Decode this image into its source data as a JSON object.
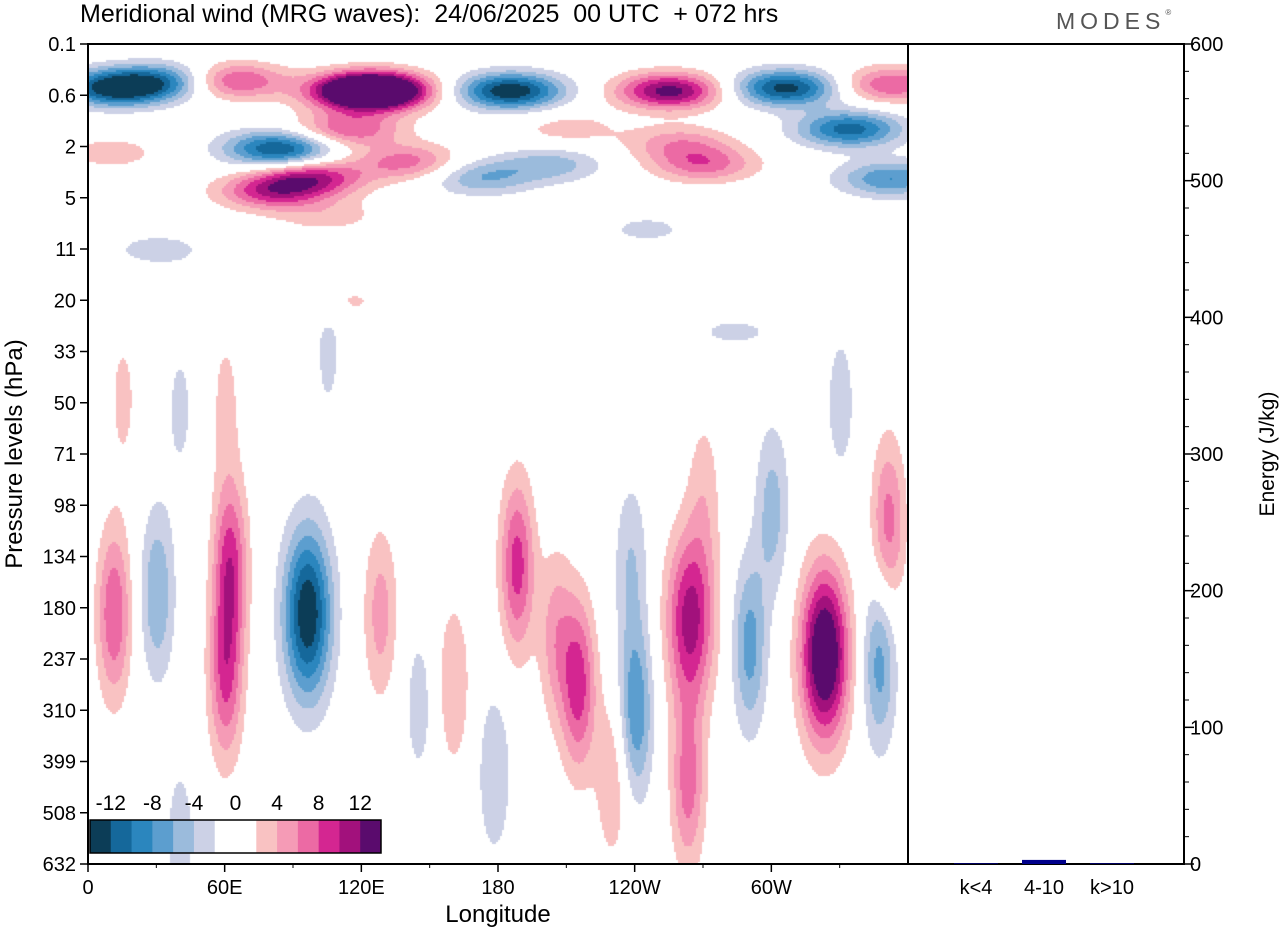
{
  "header": {
    "title": "Meridional wind (MRG waves):  24/06/2025  00 UTC  + 072 hrs",
    "brand": "MODES"
  },
  "chart_data": [
    {
      "type": "heatmap",
      "title": "Meridional wind (MRG waves):  24/06/2025  00 UTC  + 072 hrs",
      "xlabel": "Longitude",
      "ylabel": "Pressure levels (hPa)",
      "x_ticks": [
        "0",
        "60E",
        "120E",
        "180",
        "120W",
        "60W"
      ],
      "x_range": [
        0,
        360
      ],
      "y_ticks": [
        "0.1",
        "0.6",
        "2",
        "5",
        "11",
        "20",
        "33",
        "50",
        "71",
        "98",
        "134",
        "180",
        "237",
        "310",
        "399",
        "508",
        "632"
      ],
      "colorbar": {
        "levels": [
          -12,
          -10,
          -8,
          -6,
          -4,
          -2,
          0,
          2,
          4,
          6,
          8,
          10,
          12
        ],
        "tick_labels": [
          "-12",
          "-8",
          "-4",
          "0",
          "4",
          "8",
          "12"
        ],
        "colors": [
          "#0c3d57",
          "#15689b",
          "#2b86be",
          "#5c9ecf",
          "#9bbbdc",
          "#ccd1e6",
          "#ffffff",
          "#ffffff",
          "#f9c2c2",
          "#f59bb6",
          "#ec6aa4",
          "#d42691",
          "#a2117c",
          "#5a0b6d"
        ]
      },
      "blobs": [
        {
          "lon": 12,
          "lev": 0.45,
          "v": -14
        },
        {
          "lon": 34,
          "lev": 0.35,
          "v": -8
        },
        {
          "lon": 63,
          "lev": 0.35,
          "v": 9
        },
        {
          "lon": 78,
          "lev": 2.0,
          "v": -4
        },
        {
          "lon": 86,
          "lev": 2.1,
          "v": -9
        },
        {
          "lon": 120,
          "lev": 0.5,
          "v": 15
        },
        {
          "lon": 128,
          "lev": 0.5,
          "v": 13
        },
        {
          "lon": 114,
          "lev": 1.3,
          "v": 8
        },
        {
          "lon": 98,
          "lev": 3.4,
          "v": 10
        },
        {
          "lon": 80,
          "lev": 4.4,
          "v": 9
        },
        {
          "lon": 140,
          "lev": 2.6,
          "v": 7
        },
        {
          "lon": 105,
          "lev": 6.5,
          "v": 3
        },
        {
          "lon": 185,
          "lev": 0.5,
          "v": -14
        },
        {
          "lon": 172,
          "lev": 3.4,
          "v": -6
        },
        {
          "lon": 203,
          "lev": 2.7,
          "v": -5
        },
        {
          "lon": 210,
          "lev": 1.3,
          "v": 3
        },
        {
          "lon": 255,
          "lev": 0.5,
          "v": 13
        },
        {
          "lon": 270,
          "lev": 2.7,
          "v": 7
        },
        {
          "lon": 259,
          "lev": 1.8,
          "v": 5
        },
        {
          "lon": 306,
          "lev": 0.45,
          "v": -13
        },
        {
          "lon": 334,
          "lev": 1.3,
          "v": -11
        },
        {
          "lon": 352,
          "lev": 3.5,
          "v": -8
        },
        {
          "lon": 352,
          "lev": 0.4,
          "v": 8
        },
        {
          "lon": 10,
          "lev": 2.2,
          "v": 3
        },
        {
          "lon": 30,
          "lev": 11,
          "v": -3
        },
        {
          "lon": 110,
          "lev": 20,
          "v": 2.5
        },
        {
          "lon": 245,
          "lev": 8,
          "v": -2.5
        },
        {
          "lon": 330,
          "lev": 50,
          "v": -3
        },
        {
          "lon": 60,
          "lev": 48,
          "v": 2.5
        },
        {
          "lon": 15,
          "lev": 48,
          "v": 2.5
        },
        {
          "lon": 105,
          "lev": 33,
          "v": -2.5
        },
        {
          "lon": 40,
          "lev": 52,
          "v": -2.5
        },
        {
          "lon": 283,
          "lev": 27,
          "v": -2.5
        },
        {
          "lon": 11,
          "lev": 185,
          "v": 8
        },
        {
          "lon": 30,
          "lev": 165,
          "v": -6
        },
        {
          "lon": 62,
          "lev": 140,
          "v": 9
        },
        {
          "lon": 60,
          "lev": 260,
          "v": 8
        },
        {
          "lon": 96,
          "lev": 185,
          "v": -14
        },
        {
          "lon": 128,
          "lev": 185,
          "v": 5
        },
        {
          "lon": 145,
          "lev": 300,
          "v": -3
        },
        {
          "lon": 188,
          "lev": 140,
          "v": 9
        },
        {
          "lon": 205,
          "lev": 210,
          "v": 5
        },
        {
          "lon": 215,
          "lev": 270,
          "v": 9
        },
        {
          "lon": 240,
          "lev": 310,
          "v": -8
        },
        {
          "lon": 238,
          "lev": 140,
          "v": -4
        },
        {
          "lon": 264,
          "lev": 190,
          "v": 11
        },
        {
          "lon": 263,
          "lev": 440,
          "v": 7
        },
        {
          "lon": 290,
          "lev": 220,
          "v": -7
        },
        {
          "lon": 323,
          "lev": 230,
          "v": 16
        },
        {
          "lon": 347,
          "lev": 240,
          "v": -7
        },
        {
          "lon": 300,
          "lev": 100,
          "v": -5
        },
        {
          "lon": 351,
          "lev": 110,
          "v": 7
        },
        {
          "lon": 270,
          "lev": 90,
          "v": 3
        },
        {
          "lon": 160,
          "lev": 270,
          "v": 4
        },
        {
          "lon": 178,
          "lev": 420,
          "v": -4
        },
        {
          "lon": 230,
          "lev": 430,
          "v": 4
        },
        {
          "lon": 40,
          "lev": 560,
          "v": -3
        }
      ]
    },
    {
      "type": "bar",
      "categories": [
        "k<4",
        "4-10",
        "k>10"
      ],
      "values": [
        0.5,
        3,
        0.5
      ],
      "ylabel": "Energy (J/kg)",
      "ylim": [
        0,
        600
      ],
      "y_ticks": [
        "0",
        "100",
        "200",
        "300",
        "400",
        "500",
        "600"
      ],
      "bar_color": "#00008b"
    }
  ]
}
